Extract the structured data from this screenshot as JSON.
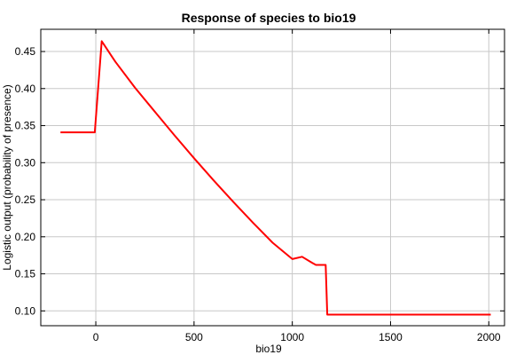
{
  "chart_data": {
    "type": "line",
    "title": "Response of species to bio19",
    "xlabel": "bio19",
    "ylabel": "Logistic output (probability of presence)",
    "xlim": [
      -280,
      2080
    ],
    "ylim": [
      0.08,
      0.48
    ],
    "xticks": [
      0,
      500,
      1000,
      1500,
      2000
    ],
    "yticks": [
      0.1,
      0.15,
      0.2,
      0.25,
      0.3,
      0.35,
      0.4,
      0.45
    ],
    "grid": true,
    "series": [
      {
        "color": "#ff0000",
        "x": [
          -180,
          -5,
          30,
          40,
          100,
          200,
          300,
          400,
          500,
          600,
          700,
          800,
          900,
          1000,
          1050,
          1100,
          1120,
          1170,
          1178,
          1190,
          1500,
          2010
        ],
        "y": [
          0.341,
          0.341,
          0.464,
          0.46,
          0.436,
          0.401,
          0.369,
          0.337,
          0.306,
          0.276,
          0.247,
          0.219,
          0.192,
          0.17,
          0.173,
          0.165,
          0.162,
          0.162,
          0.095,
          0.095,
          0.095,
          0.095
        ]
      }
    ]
  }
}
